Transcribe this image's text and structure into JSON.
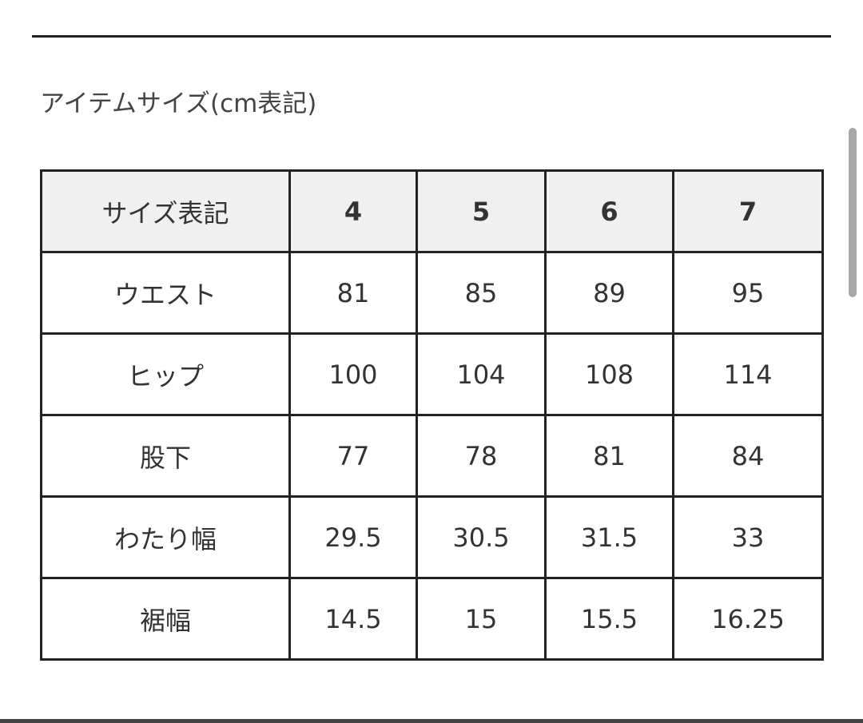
{
  "title": "アイテムサイズ(cm表記)",
  "table": {
    "header": [
      "サイズ表記",
      "4",
      "5",
      "6",
      "7"
    ],
    "rows": [
      [
        "ウエスト",
        "81",
        "85",
        "89",
        "95"
      ],
      [
        "ヒップ",
        "100",
        "104",
        "108",
        "114"
      ],
      [
        "股下",
        "77",
        "78",
        "81",
        "84"
      ],
      [
        "わたり幅",
        "29.5",
        "30.5",
        "31.5",
        "33"
      ],
      [
        "裾幅",
        "14.5",
        "15",
        "15.5",
        "16.25"
      ]
    ]
  }
}
